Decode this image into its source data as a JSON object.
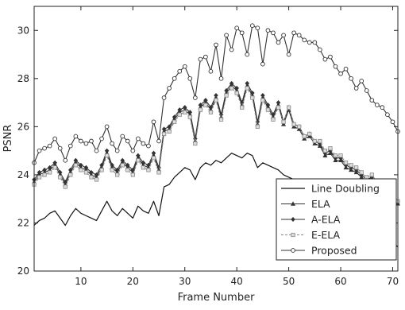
{
  "chart_data": {
    "type": "line",
    "xlabel": "Frame Number",
    "ylabel": "PSNR",
    "xlim": [
      1,
      71
    ],
    "ylim": [
      20,
      31
    ],
    "xticks": [
      10,
      20,
      30,
      40,
      50,
      60,
      70
    ],
    "yticks": [
      20,
      22,
      24,
      26,
      28,
      30
    ],
    "grid": false,
    "legend_position": "bottom-right",
    "x": [
      1,
      2,
      3,
      4,
      5,
      6,
      7,
      8,
      9,
      10,
      11,
      12,
      13,
      14,
      15,
      16,
      17,
      18,
      19,
      20,
      21,
      22,
      23,
      24,
      25,
      26,
      27,
      28,
      29,
      30,
      31,
      32,
      33,
      34,
      35,
      36,
      37,
      38,
      39,
      40,
      41,
      42,
      43,
      44,
      45,
      46,
      47,
      48,
      49,
      50,
      51,
      52,
      53,
      54,
      55,
      56,
      57,
      58,
      59,
      60,
      61,
      62,
      63,
      64,
      65,
      66,
      67,
      68,
      69,
      70,
      71
    ],
    "series": [
      {
        "name": "Line Doubling",
        "marker": "none",
        "values": [
          21.9,
          22.1,
          22.2,
          22.4,
          22.5,
          22.2,
          21.9,
          22.3,
          22.6,
          22.4,
          22.3,
          22.2,
          22.1,
          22.5,
          22.9,
          22.5,
          22.3,
          22.6,
          22.4,
          22.2,
          22.7,
          22.5,
          22.4,
          22.9,
          22.3,
          23.5,
          23.6,
          23.9,
          24.1,
          24.3,
          24.2,
          23.8,
          24.3,
          24.5,
          24.4,
          24.6,
          24.5,
          24.7,
          24.9,
          24.8,
          24.7,
          24.9,
          24.8,
          24.3,
          24.5,
          24.4,
          24.3,
          24.2,
          24.0,
          23.9,
          23.8,
          23.7,
          23.6,
          23.5,
          23.4,
          23.3,
          23.2,
          23.1,
          23.0,
          22.9,
          22.8,
          22.6,
          22.5,
          22.3,
          22.2,
          22.0,
          21.8,
          21.6,
          21.4,
          21.2,
          21.0
        ]
      },
      {
        "name": "ELA",
        "marker": "triangle",
        "values": [
          23.7,
          24.0,
          24.1,
          24.2,
          24.4,
          24.0,
          23.6,
          24.1,
          24.5,
          24.3,
          24.2,
          24.0,
          23.9,
          24.3,
          24.9,
          24.3,
          24.1,
          24.5,
          24.3,
          24.1,
          24.7,
          24.4,
          24.3,
          24.8,
          24.2,
          25.8,
          25.9,
          26.3,
          26.6,
          26.7,
          26.5,
          25.4,
          26.8,
          27.0,
          26.7,
          27.2,
          26.4,
          27.4,
          27.7,
          27.5,
          26.9,
          27.7,
          27.3,
          26.1,
          27.2,
          26.8,
          26.4,
          26.9,
          26.1,
          26.7,
          26.0,
          25.9,
          25.5,
          25.6,
          25.3,
          25.2,
          24.8,
          24.9,
          24.6,
          24.6,
          24.3,
          24.2,
          24.1,
          23.9,
          23.7,
          23.8,
          23.5,
          23.4,
          23.2,
          23.0,
          22.8
        ]
      },
      {
        "name": "A-ELA",
        "marker": "diamond",
        "values": [
          23.8,
          24.1,
          24.2,
          24.3,
          24.5,
          24.1,
          23.7,
          24.2,
          24.6,
          24.4,
          24.3,
          24.1,
          24.0,
          24.4,
          25.0,
          24.4,
          24.2,
          24.6,
          24.4,
          24.2,
          24.8,
          24.5,
          24.4,
          24.9,
          24.3,
          25.9,
          26.0,
          26.4,
          26.7,
          26.8,
          26.6,
          25.5,
          26.9,
          27.1,
          26.8,
          27.3,
          26.5,
          27.5,
          27.8,
          27.6,
          27.0,
          27.8,
          27.4,
          26.2,
          27.3,
          26.9,
          26.5,
          27.0,
          26.2,
          26.8,
          26.1,
          26.0,
          25.6,
          25.7,
          25.4,
          25.3,
          24.9,
          25.0,
          24.7,
          24.7,
          24.4,
          24.3,
          24.2,
          24.0,
          23.8,
          23.9,
          23.6,
          23.5,
          23.3,
          23.1,
          22.9
        ]
      },
      {
        "name": "E-ELA",
        "marker": "square",
        "values": [
          23.6,
          23.9,
          24.0,
          24.1,
          24.3,
          23.9,
          23.5,
          24.0,
          24.4,
          24.2,
          24.1,
          23.9,
          23.8,
          24.2,
          24.8,
          24.2,
          24.0,
          24.4,
          24.2,
          24.0,
          24.6,
          24.3,
          24.2,
          24.7,
          24.1,
          25.7,
          25.8,
          26.2,
          26.5,
          26.6,
          26.4,
          25.3,
          26.7,
          26.9,
          26.6,
          27.1,
          26.3,
          27.3,
          27.6,
          27.4,
          26.8,
          27.6,
          27.2,
          26.0,
          27.1,
          26.7,
          26.3,
          26.8,
          26.2,
          26.8,
          26.1,
          26.0,
          25.6,
          25.7,
          25.4,
          25.4,
          25.0,
          25.1,
          24.8,
          24.8,
          24.5,
          24.4,
          24.3,
          24.1,
          23.9,
          24.0,
          23.7,
          23.6,
          23.4,
          23.2,
          22.9
        ]
      },
      {
        "name": "Proposed",
        "marker": "circle",
        "values": [
          24.5,
          25.0,
          25.1,
          25.2,
          25.5,
          25.1,
          24.6,
          25.2,
          25.6,
          25.4,
          25.3,
          25.4,
          25.0,
          25.5,
          26.0,
          25.3,
          25.0,
          25.6,
          25.4,
          25.0,
          25.5,
          25.3,
          25.2,
          26.2,
          25.4,
          27.2,
          27.6,
          28.0,
          28.3,
          28.5,
          28.0,
          27.2,
          28.8,
          28.9,
          28.3,
          29.4,
          28.0,
          29.8,
          29.2,
          30.1,
          29.9,
          29.0,
          30.2,
          30.1,
          28.6,
          30.0,
          29.9,
          29.5,
          29.8,
          29.0,
          29.9,
          29.8,
          29.6,
          29.5,
          29.5,
          29.2,
          28.8,
          28.9,
          28.5,
          28.2,
          28.4,
          28.0,
          27.6,
          27.9,
          27.5,
          27.1,
          26.9,
          26.8,
          26.5,
          26.2,
          25.8
        ]
      }
    ]
  }
}
